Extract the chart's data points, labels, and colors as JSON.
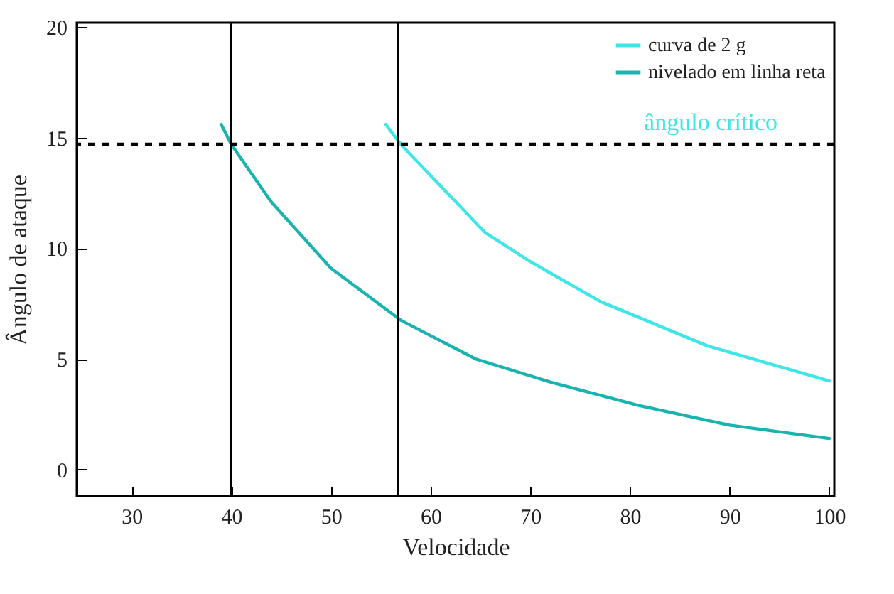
{
  "chart_data": {
    "type": "line",
    "xlabel": "Velocidade",
    "ylabel": "Ângulo de ataque",
    "xlim": [
      24.5,
      100.5
    ],
    "ylim": [
      -1.2,
      20.2
    ],
    "xticks": [
      30,
      40,
      50,
      60,
      70,
      80,
      90,
      100
    ],
    "yticks": [
      0,
      5,
      10,
      15,
      20
    ],
    "grid": false,
    "legend": "top right",
    "marker": "none",
    "line_style": "solid",
    "series": [
      {
        "name": "curva de 2 g",
        "color": "#40e6e6",
        "x": [
          55.5,
          57,
          65.5,
          70,
          77,
          87.7,
          100
        ],
        "values": [
          15.6,
          14.7,
          10.7,
          9.4,
          7.6,
          5.6,
          4.0
        ]
      },
      {
        "name": "nivelado em linha reta",
        "color": "#1ab3ae",
        "x": [
          39,
          40,
          44,
          50,
          57,
          64.5,
          72,
          80.8,
          90,
          100
        ],
        "values": [
          15.6,
          14.7,
          12.1,
          9.1,
          6.75,
          5.0,
          3.95,
          2.9,
          2.0,
          1.4
        ]
      }
    ],
    "ref_lines": [
      {
        "axis": "y",
        "value": 14.7,
        "label": "ângulo crítico",
        "color": "#000000",
        "line_style": "dashed"
      },
      {
        "axis": "x",
        "value": 40,
        "color": "#000000",
        "line_style": "solid"
      },
      {
        "axis": "x",
        "value": 56.7,
        "color": "#000000",
        "line_style": "solid"
      }
    ]
  }
}
